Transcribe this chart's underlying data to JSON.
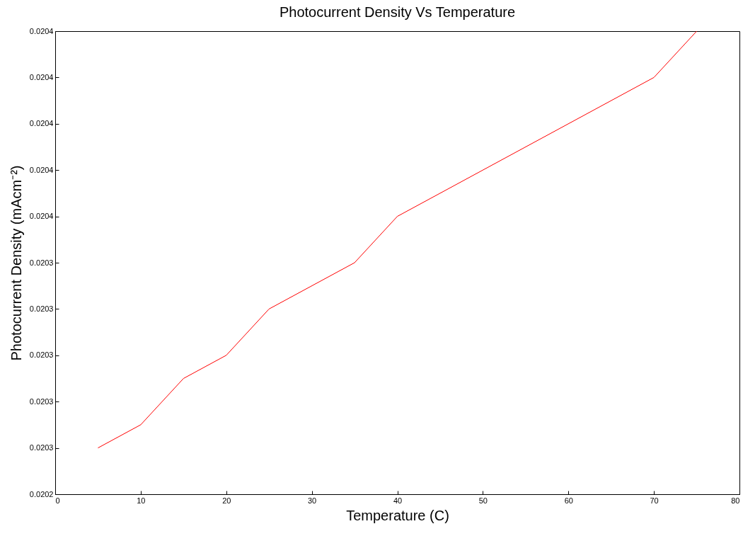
{
  "chart_data": {
    "type": "line",
    "title": "Photocurrent Density Vs Temperature",
    "xlabel": "Temperature (C)",
    "ylabel": "Photocurrent Density (mAcm⁻²)",
    "x": [
      5,
      10,
      15,
      20,
      25,
      35,
      40,
      70,
      75
    ],
    "values": [
      0.02026,
      0.02027,
      0.02029,
      0.0203,
      0.02032,
      0.02034,
      0.02036,
      0.02042,
      0.02044
    ],
    "color": "#ff0000",
    "xlim": [
      0,
      80
    ],
    "xticks": [
      0,
      10,
      20,
      30,
      40,
      50,
      60,
      70,
      80
    ],
    "ylim": [
      0.02024,
      0.02044
    ],
    "yticks": [
      {
        "value": 0.02024,
        "label": "0.0202"
      },
      {
        "value": 0.02026,
        "label": "0.0203"
      },
      {
        "value": 0.02028,
        "label": "0.0203"
      },
      {
        "value": 0.0203,
        "label": "0.0203"
      },
      {
        "value": 0.02032,
        "label": "0.0203"
      },
      {
        "value": 0.02034,
        "label": "0.0203"
      },
      {
        "value": 0.02036,
        "label": "0.0204"
      },
      {
        "value": 0.02038,
        "label": "0.0204"
      },
      {
        "value": 0.0204,
        "label": "0.0204"
      },
      {
        "value": 0.02042,
        "label": "0.0204"
      },
      {
        "value": 0.02044,
        "label": "0.0204"
      }
    ]
  }
}
